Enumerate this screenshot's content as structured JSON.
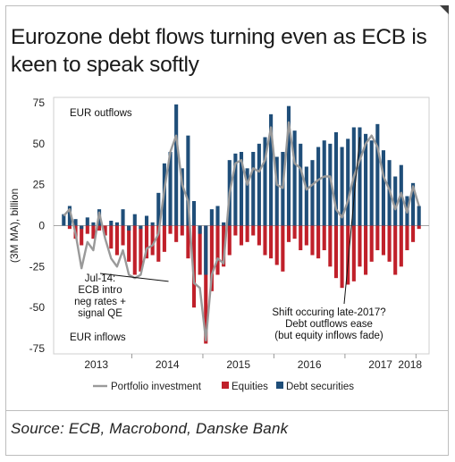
{
  "title": "Eurozone debt flows turning even as ECB is keen to speak softly",
  "source": "Source: ECB, Macrobond, Danske Bank",
  "chart_data": {
    "type": "bar",
    "ylabel": "(3M MA), billion",
    "ylim": [
      -75,
      75
    ],
    "yticks": [
      75,
      50,
      25,
      0,
      -25,
      -50,
      -75
    ],
    "xticks": [
      "2013",
      "2014",
      "2015",
      "2016",
      "2017",
      "2018"
    ],
    "start": "2013-01",
    "annotations": {
      "outflows": "EUR outflows",
      "inflows": "EUR inflows",
      "qe_lines": [
        "Jul-14:",
        "ECB intro",
        "neg rates +",
        "signal QE"
      ],
      "shift_lines": [
        "Shift occuring late-2017?",
        "Debt outflows ease",
        "(but equity inflows fade)"
      ]
    },
    "colors": {
      "equities": "#c0202a",
      "debt": "#1f4e79",
      "portfolio": "#9a9a9a"
    },
    "series": [
      {
        "name": "Equities",
        "values": [
          0,
          -2,
          -8,
          -12,
          -5,
          -8,
          -3,
          -6,
          -14,
          -18,
          -12,
          -22,
          -30,
          -28,
          -20,
          -18,
          -22,
          -16,
          -5,
          -10,
          -6,
          -20,
          -50,
          -30,
          -72,
          -40,
          -30,
          -25,
          -18,
          -6,
          -12,
          -10,
          -6,
          -12,
          -18,
          -20,
          -24,
          -28,
          -10,
          -8,
          -15,
          -12,
          -18,
          -20,
          -15,
          -25,
          -32,
          -38,
          -36,
          -34,
          -25,
          -30,
          -22,
          -15,
          -18,
          -22,
          -30,
          -25,
          -15,
          -10,
          -2
        ]
      },
      {
        "name": "Debt securities",
        "values": [
          7,
          12,
          4,
          -2,
          5,
          2,
          10,
          0,
          3,
          2,
          10,
          -3,
          7,
          -2,
          6,
          2,
          20,
          38,
          45,
          74,
          35,
          55,
          15,
          -5,
          -30,
          10,
          12,
          2,
          40,
          44,
          45,
          35,
          45,
          50,
          54,
          68,
          42,
          45,
          73,
          58,
          50,
          36,
          40,
          48,
          52,
          50,
          57,
          48,
          53,
          60,
          60,
          56,
          52,
          62,
          46,
          40,
          30,
          37,
          18,
          26,
          12
        ]
      },
      {
        "name": "Portfolio investment",
        "values": [
          6,
          10,
          -5,
          -26,
          -10,
          -15,
          8,
          -8,
          -20,
          -25,
          -15,
          -30,
          -32,
          -30,
          -14,
          -12,
          -5,
          22,
          45,
          55,
          25,
          15,
          -35,
          -38,
          -70,
          -30,
          -20,
          -23,
          20,
          38,
          40,
          25,
          35,
          33,
          40,
          60,
          25,
          23,
          63,
          38,
          35,
          22,
          25,
          28,
          30,
          30,
          10,
          5,
          15,
          30,
          40,
          50,
          55,
          48,
          30,
          22,
          10,
          20,
          8,
          24,
          12
        ]
      }
    ]
  }
}
